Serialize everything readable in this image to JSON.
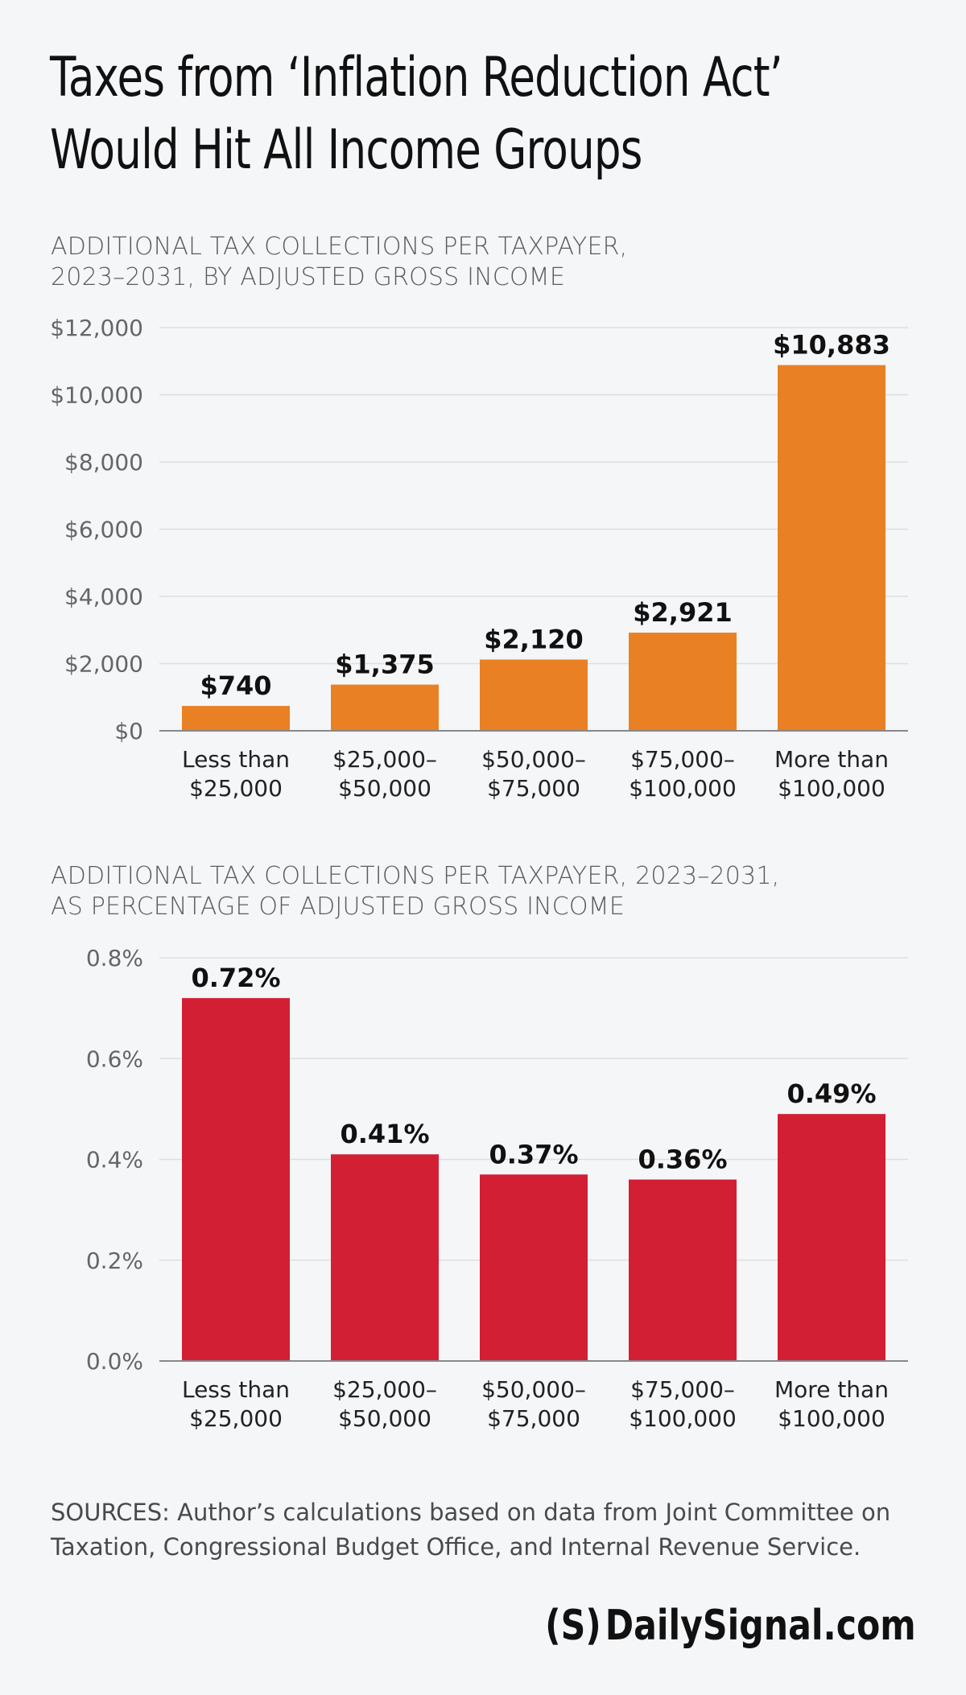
{
  "title": {
    "line1": "Taxes from ‘Inflation Reduction Act’",
    "line2": "Would Hit All Income Groups"
  },
  "colors": {
    "background": "#f5f6f8",
    "bar1": "#e98024",
    "bar2": "#d21f34",
    "grid": "#dedede",
    "axis": "#888888"
  },
  "chart_data": [
    {
      "type": "bar",
      "subtitle": [
        "ADDITIONAL TAX COLLECTIONS PER TAXPAYER,",
        "2023–2031, BY ADJUSTED GROSS INCOME"
      ],
      "categories": [
        [
          "Less than",
          "$25,000"
        ],
        [
          "$25,000–",
          "$50,000"
        ],
        [
          "$50,000–",
          "$75,000"
        ],
        [
          "$75,000–",
          "$100,000"
        ],
        [
          "More than",
          "$100,000"
        ]
      ],
      "values": [
        740,
        1375,
        2120,
        2921,
        10883
      ],
      "data_labels": [
        "$740",
        "$1,375",
        "$2,120",
        "$2,921",
        "$10,883"
      ],
      "yticks": [
        0,
        2000,
        4000,
        6000,
        8000,
        10000,
        12000
      ],
      "ytick_labels": [
        "$0",
        "$2,000",
        "$4,000",
        "$6,000",
        "$8,000",
        "$10,000",
        "$12,000"
      ],
      "ylim": [
        0,
        12000
      ],
      "grid": true,
      "color": "#e98024"
    },
    {
      "type": "bar",
      "subtitle": [
        "ADDITIONAL TAX COLLECTIONS PER TAXPAYER, 2023–2031,",
        "AS PERCENTAGE OF ADJUSTED GROSS INCOME"
      ],
      "categories": [
        [
          "Less than",
          "$25,000"
        ],
        [
          "$25,000–",
          "$50,000"
        ],
        [
          "$50,000–",
          "$75,000"
        ],
        [
          "$75,000–",
          "$100,000"
        ],
        [
          "More than",
          "$100,000"
        ]
      ],
      "values": [
        0.72,
        0.41,
        0.37,
        0.36,
        0.49
      ],
      "data_labels": [
        "0.72%",
        "0.41%",
        "0.37%",
        "0.36%",
        "0.49%"
      ],
      "yticks": [
        0,
        0.2,
        0.4,
        0.6,
        0.8
      ],
      "ytick_labels": [
        "0.0%",
        "0.2%",
        "0.4%",
        "0.6%",
        "0.8%"
      ],
      "ylim": [
        0,
        0.8
      ],
      "grid": true,
      "color": "#d21f34"
    }
  ],
  "sources": {
    "line1": "SOURCES: Author’s calculations based on data from Joint Committee on",
    "line2": "Taxation, Congressional Budget Office, and Internal Revenue Service."
  },
  "brand": {
    "mark": "(S)",
    "name": "DailySignal.com"
  }
}
